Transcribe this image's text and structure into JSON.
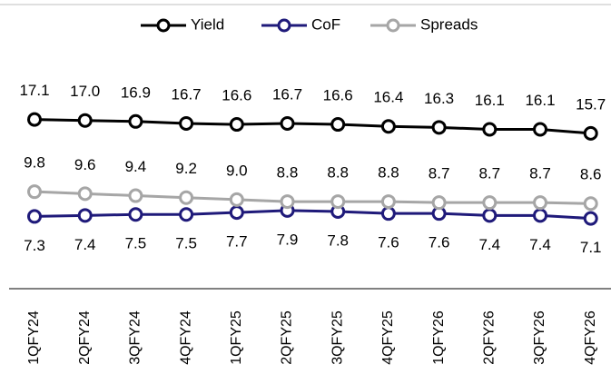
{
  "chart_data": {
    "type": "line",
    "categories": [
      "1QFY24",
      "2QFY24",
      "3QFY24",
      "4QFY24",
      "1QFY25",
      "2QFY25",
      "3QFY25",
      "4QFY25",
      "1QFY26",
      "2QFY26",
      "3QFY26",
      "4QFY26"
    ],
    "ylim": [
      0,
      20
    ],
    "legend": "top",
    "series": [
      {
        "name": "Yield",
        "color": "#000000",
        "values": [
          17.1,
          17.0,
          16.9,
          16.7,
          16.6,
          16.7,
          16.6,
          16.4,
          16.3,
          16.1,
          16.1,
          15.7
        ],
        "value_labels": [
          "17.1",
          "17.0",
          "16.9",
          "16.7",
          "16.6",
          "16.7",
          "16.6",
          "16.4",
          "16.3",
          "16.1",
          "16.1",
          "15.7"
        ],
        "label_position": "above"
      },
      {
        "name": "CoF",
        "color": "#1f1a7a",
        "values": [
          7.3,
          7.4,
          7.5,
          7.5,
          7.7,
          7.9,
          7.8,
          7.6,
          7.6,
          7.4,
          7.4,
          7.1
        ],
        "value_labels": [
          "7.3",
          "7.4",
          "7.5",
          "7.5",
          "7.7",
          "7.9",
          "7.8",
          "7.6",
          "7.6",
          "7.4",
          "7.4",
          "7.1"
        ],
        "label_position": "below"
      },
      {
        "name": "Spreads",
        "color": "#a6a6a6",
        "values": [
          9.8,
          9.6,
          9.4,
          9.2,
          9.0,
          8.8,
          8.8,
          8.8,
          8.7,
          8.7,
          8.7,
          8.6
        ],
        "value_labels": [
          "9.8",
          "9.6",
          "9.4",
          "9.2",
          "9.0",
          "8.8",
          "8.8",
          "8.8",
          "8.7",
          "8.7",
          "8.7",
          "8.6"
        ],
        "label_position": "above"
      }
    ]
  }
}
